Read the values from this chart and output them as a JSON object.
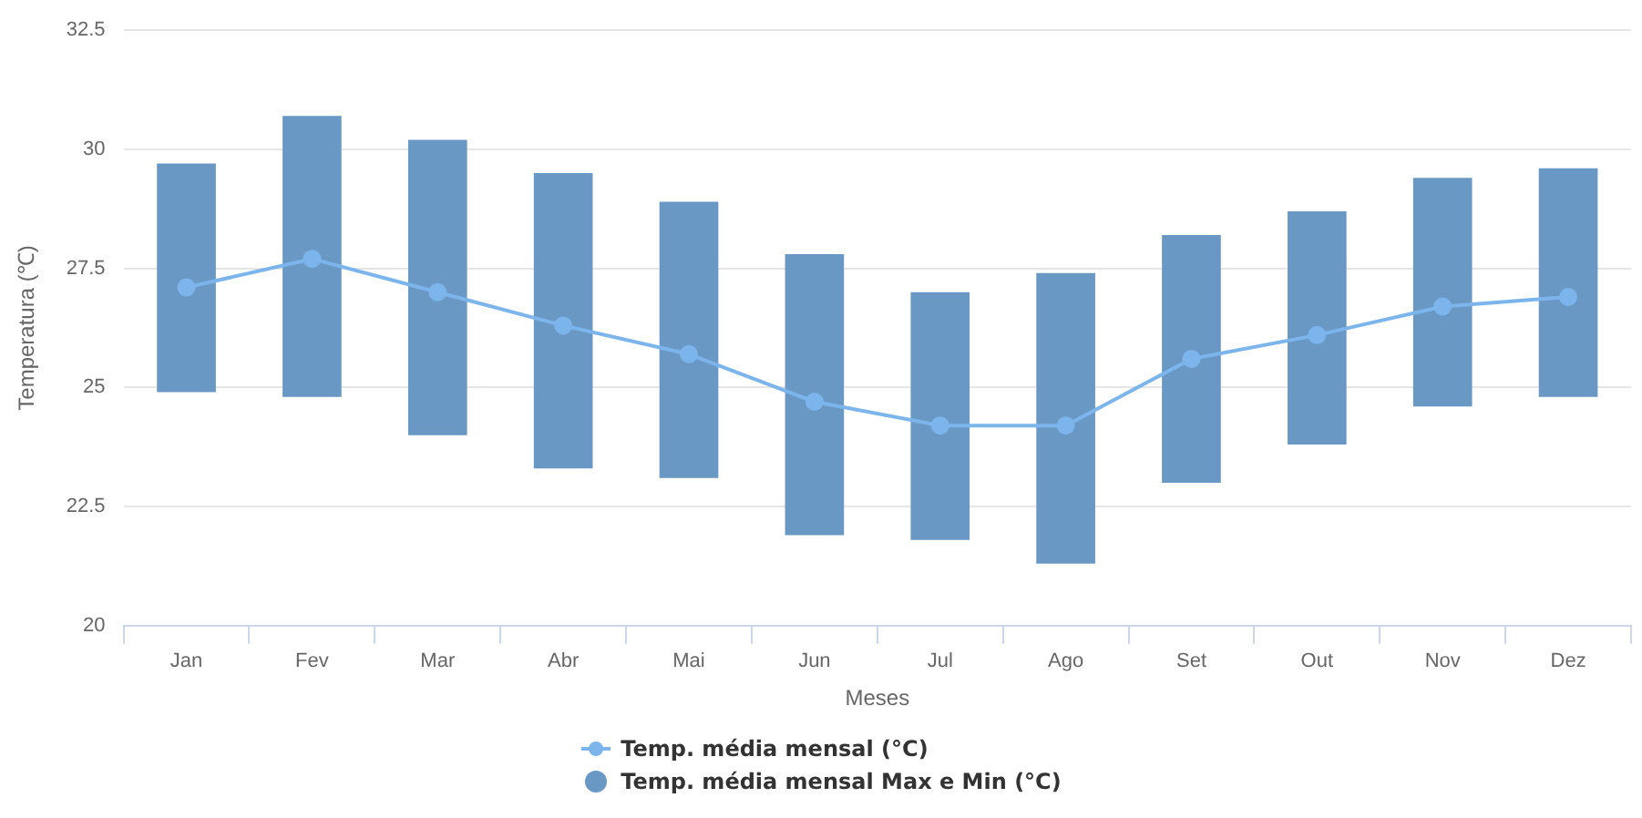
{
  "chart_data": {
    "type": "bar",
    "xlabel": "Meses",
    "ylabel": "Temperatura (℃)",
    "categories": [
      "Jan",
      "Fev",
      "Mar",
      "Abr",
      "Mai",
      "Jun",
      "Jul",
      "Ago",
      "Set",
      "Out",
      "Nov",
      "Dez"
    ],
    "series": [
      {
        "name": "Temp. média mensal (°C)",
        "type": "line",
        "color": "#7cb5ec",
        "marker": "circle",
        "values": [
          27.1,
          27.7,
          27.0,
          26.3,
          25.7,
          24.7,
          24.2,
          24.2,
          25.6,
          26.1,
          26.7,
          26.9
        ]
      },
      {
        "name": "Temp. média mensal Max e Min (°C)",
        "color": "#6a98c4",
        "base": [
          24.9,
          24.8,
          24.0,
          23.3,
          23.1,
          21.9,
          21.8,
          21.3,
          23.0,
          23.8,
          24.6,
          24.8
        ],
        "values": [
          4.8,
          5.9,
          6.2,
          6.2,
          5.8,
          5.9,
          5.2,
          6.1,
          5.2,
          4.9,
          4.8,
          4.8
        ]
      }
    ],
    "ylim": [
      20,
      32.5
    ],
    "yticks": [
      20,
      22.5,
      25,
      27.5,
      30,
      32.5
    ],
    "grid": "y",
    "legend": "bottom"
  }
}
